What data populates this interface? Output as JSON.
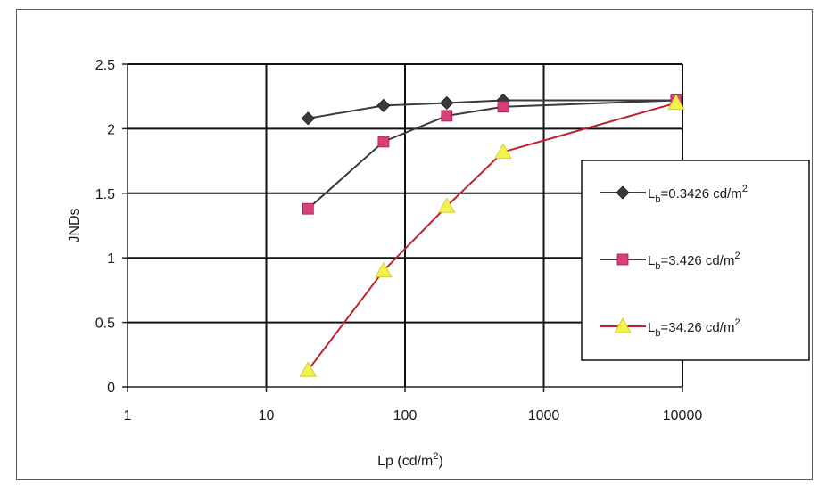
{
  "chart_data": {
    "type": "line",
    "xscale": "log",
    "xlim": [
      1,
      10000
    ],
    "ylim": [
      0,
      2.5
    ],
    "xticks": [
      "1",
      "10",
      "100",
      "1000",
      "10000"
    ],
    "yticks": [
      "0",
      "0.5",
      "1",
      "1.5",
      "2",
      "2.5"
    ],
    "xlabel": {
      "text": "Lp (cd/m",
      "sup": "2",
      "tail": ")"
    },
    "ylabel": "JNDs",
    "grid": true,
    "legend_position": "right",
    "series": [
      {
        "label_main": "L",
        "label_sub": "b",
        "label_rest": "=0.3426 cd/m",
        "label_sup": "2",
        "color": "#3a3a3a",
        "marker": "diamond",
        "marker_color": "#3a3a3a",
        "x": [
          20,
          70,
          200,
          510,
          9000
        ],
        "y": [
          2.08,
          2.18,
          2.2,
          2.22,
          2.22
        ]
      },
      {
        "label_main": "L",
        "label_sub": "b",
        "label_rest": "=3.426 cd/m",
        "label_sup": "2",
        "color": "#3a3a3a",
        "marker": "square",
        "marker_color": "#d9407a",
        "x": [
          20,
          70,
          200,
          510,
          9000
        ],
        "y": [
          1.38,
          1.9,
          2.1,
          2.17,
          2.22
        ]
      },
      {
        "label_main": "L",
        "label_sub": "b",
        "label_rest": "=34.26 cd/m",
        "label_sup": "2",
        "color": "#c2202a",
        "marker": "triangle",
        "marker_color": "#f2f24a",
        "x": [
          20,
          70,
          200,
          510,
          9000
        ],
        "y": [
          0.13,
          0.9,
          1.4,
          1.82,
          2.2
        ]
      }
    ]
  }
}
